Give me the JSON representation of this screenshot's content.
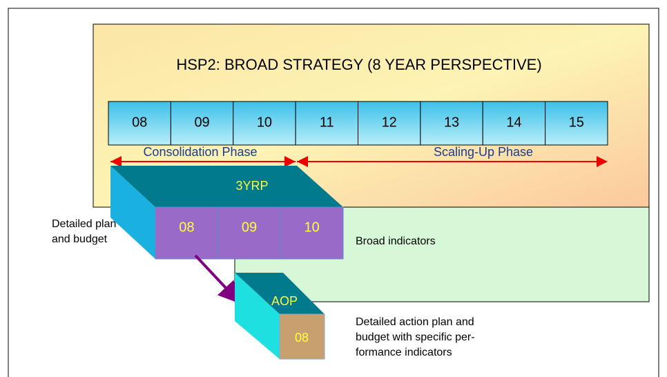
{
  "title": "HSP2: BROAD STRATEGY (8 YEAR PERSPECTIVE)",
  "years": [
    "08",
    "09",
    "10",
    "11",
    "12",
    "13",
    "14",
    "15"
  ],
  "phases": [
    "Consolidation  Phase",
    "Scaling-Up Phase"
  ],
  "three_year_plan": {
    "label": "3YRP",
    "years": [
      "08",
      "09",
      "10"
    ],
    "note": [
      "Detailed plan",
      "and budget"
    ],
    "indicators": "Broad indicators"
  },
  "aop": {
    "label": "AOP",
    "year": "08",
    "note": [
      "Detailed action plan and",
      "budget with specific per-",
      "formance indicators"
    ]
  }
}
